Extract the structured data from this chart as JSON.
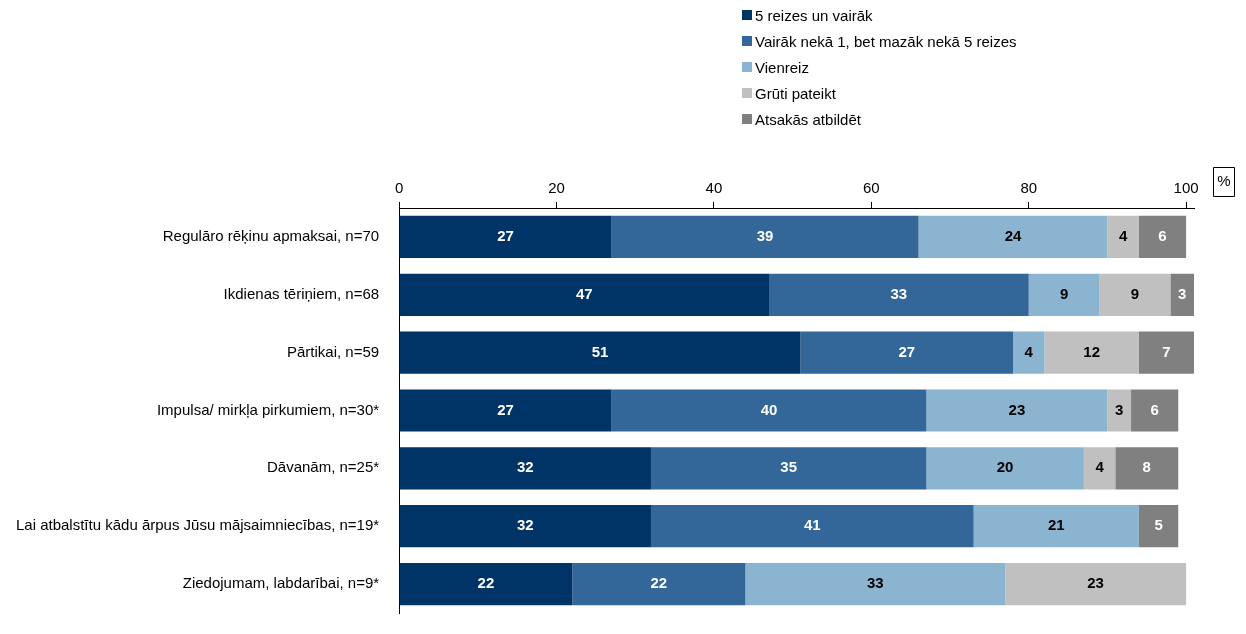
{
  "chart_data": {
    "type": "bar",
    "orientation": "horizontal",
    "stacked": true,
    "xlabel": "%",
    "legend": "top",
    "data_labels": true,
    "categories": [
      "Regulāro rēķinu apmaksai, n=70",
      "Ikdienas tēriņiem, n=68",
      "Pārtikai, n=59",
      "Impulsa/ mirkļa pirkumiem, n=30*",
      "Dāvanām, n=25*",
      "Lai atbalstītu kādu ārpus Jūsu mājsaimniecības, n=19*",
      "Ziedojumam, labdarībai, n=9*"
    ],
    "xlim": [
      0,
      101
    ],
    "xticks": [
      0,
      20,
      40,
      60,
      80,
      100
    ],
    "series": [
      {
        "name": "5 reizes un vairāk",
        "color": "#003366",
        "values": [
          27,
          47,
          51,
          27,
          32,
          32,
          22
        ]
      },
      {
        "name": "Vairāk nekā 1, bet mazāk nekā 5 reizes",
        "color": "#336699",
        "values": [
          39,
          33,
          27,
          40,
          35,
          41,
          22
        ]
      },
      {
        "name": "Vienreiz",
        "color": "#8ab4d0",
        "values": [
          24,
          9,
          4,
          23,
          20,
          21,
          33
        ]
      },
      {
        "name": "Grūti pateikt",
        "color": "#c0c0c0",
        "values": [
          4,
          9,
          12,
          3,
          4,
          null,
          23
        ]
      },
      {
        "name": "Atsakās atbildēt",
        "color": "#808080",
        "values": [
          6,
          3,
          7,
          6,
          8,
          5,
          null
        ]
      }
    ]
  }
}
